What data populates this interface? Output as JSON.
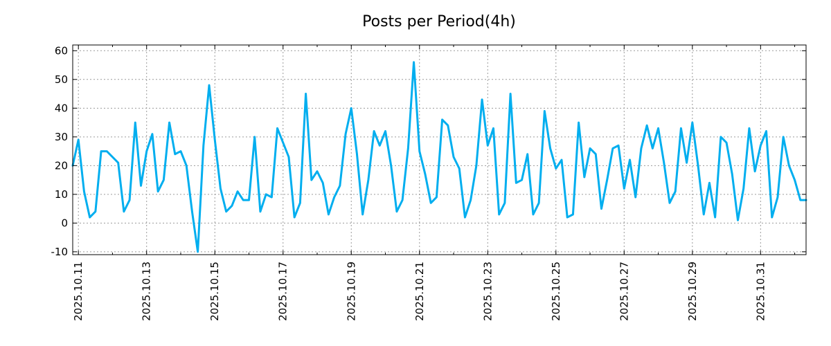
{
  "chart_data": {
    "type": "line",
    "title": "Posts per Period(4h)",
    "xlabel": "",
    "ylabel": "",
    "ylim": [
      -11,
      62
    ],
    "yticks": [
      60,
      50,
      40,
      30,
      20,
      10,
      0,
      -10
    ],
    "x_tick_labels": [
      "2025.10.11",
      "2025.10.13",
      "2025.10.15",
      "2025.10.17",
      "2025.10.19",
      "2025.10.21",
      "2025.10.23",
      "2025.10.25",
      "2025.10.27",
      "2025.10.29",
      "2025.10.31"
    ],
    "x_major_tick_indices": [
      1,
      13,
      25,
      37,
      49,
      61,
      73,
      85,
      97,
      109,
      121
    ],
    "grid": true,
    "series_color": "#00aeef",
    "series": [
      {
        "name": "Posts",
        "values": [
          20,
          29,
          11,
          2,
          4,
          25,
          25,
          23,
          21,
          4,
          8,
          35,
          13,
          25,
          31,
          11,
          15,
          35,
          24,
          25,
          20,
          4,
          -10,
          27,
          48,
          29,
          12,
          4,
          6,
          11,
          8,
          8,
          30,
          4,
          10,
          9,
          33,
          28,
          23,
          2,
          7,
          45,
          15,
          18,
          14,
          3,
          9,
          13,
          31,
          40,
          24,
          3,
          15,
          32,
          27,
          32,
          20,
          4,
          8,
          26,
          56,
          25,
          17,
          7,
          9,
          36,
          34,
          23,
          19,
          2,
          8,
          20,
          43,
          27,
          33,
          3,
          7,
          45,
          14,
          15,
          24,
          3,
          7,
          39,
          26,
          19,
          22,
          2,
          3,
          35,
          16,
          26,
          24,
          5,
          15,
          26,
          27,
          12,
          22,
          9,
          26,
          34,
          26,
          33,
          21,
          7,
          11,
          33,
          21,
          35,
          20,
          3,
          14,
          2,
          30,
          28,
          17,
          1,
          12,
          33,
          18,
          27,
          32,
          2,
          9,
          30,
          20,
          15,
          8,
          8
        ]
      }
    ]
  }
}
